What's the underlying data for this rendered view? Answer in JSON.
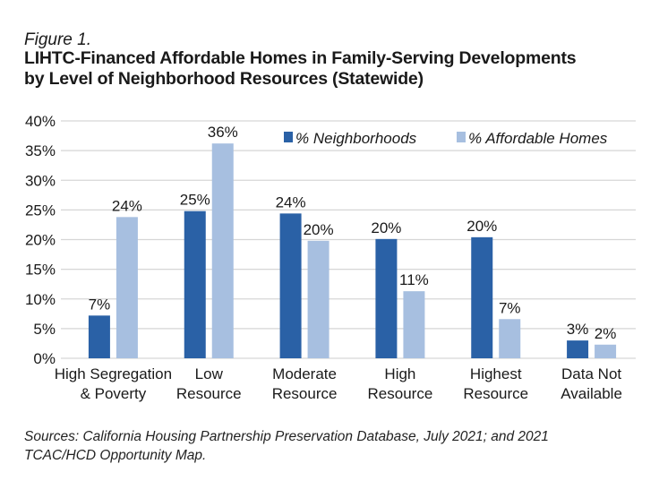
{
  "figure_label": "Figure 1.",
  "title_line1": "LIHTC-Financed Affordable Homes in Family-Serving Developments",
  "title_line2": "by Level of Neighborhood Resources (Statewide)",
  "source_line1": "Sources: California Housing Partnership Preservation Database, July 2021; and 2021",
  "source_line2": "TCAC/HCD Opportunity Map.",
  "chart_data": {
    "type": "bar",
    "title": "LIHTC-Financed Affordable Homes in Family-Serving Developments by Level of Neighborhood Resources (Statewide)",
    "xlabel": "",
    "ylabel": "",
    "ylim": [
      0,
      40
    ],
    "yticks": [
      0,
      5,
      10,
      15,
      20,
      25,
      30,
      35,
      40
    ],
    "ytick_labels": [
      "0%",
      "5%",
      "10%",
      "15%",
      "20%",
      "25%",
      "30%",
      "35%",
      "40%"
    ],
    "grid": true,
    "legend_position": "top-right",
    "categories": [
      [
        "High Segregation",
        "& Poverty"
      ],
      [
        "Low",
        "Resource"
      ],
      [
        "Moderate",
        "Resource"
      ],
      [
        "High",
        "Resource"
      ],
      [
        "Highest",
        "Resource"
      ],
      [
        "Data Not",
        "Available"
      ]
    ],
    "series": [
      {
        "name": "% Neighborhoods",
        "color": "#2A61A6",
        "values": [
          7.2,
          24.8,
          24.4,
          20.1,
          20.4,
          3.0
        ],
        "labels": [
          "7%",
          "25%",
          "24%",
          "20%",
          "20%",
          "3%"
        ]
      },
      {
        "name": "% Affordable Homes",
        "color": "#A7BFE0",
        "values": [
          23.8,
          36.2,
          19.8,
          11.3,
          6.6,
          2.3
        ],
        "labels": [
          "24%",
          "36%",
          "20%",
          "11%",
          "7%",
          "2%"
        ]
      }
    ]
  }
}
